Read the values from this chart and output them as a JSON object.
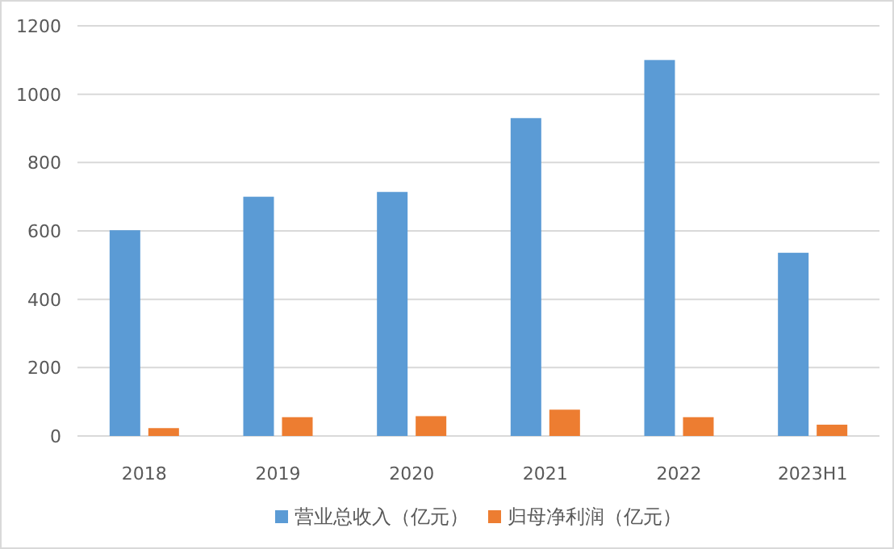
{
  "chart_data": {
    "type": "bar",
    "categories": [
      "2018",
      "2019",
      "2020",
      "2021",
      "2022",
      "2023H1"
    ],
    "series": [
      {
        "name": "营业总收入（亿元）",
        "color": "#5b9bd5",
        "values": [
          602,
          700,
          714,
          930,
          1100,
          536
        ]
      },
      {
        "name": "归母净利润（亿元）",
        "color": "#ed7d31",
        "values": [
          23,
          55,
          58,
          77,
          55,
          33
        ]
      }
    ],
    "ylim": [
      0,
      1200
    ],
    "yticks": [
      0,
      200,
      400,
      600,
      800,
      1000,
      1200
    ],
    "grid": "y",
    "legend": "bottom"
  }
}
